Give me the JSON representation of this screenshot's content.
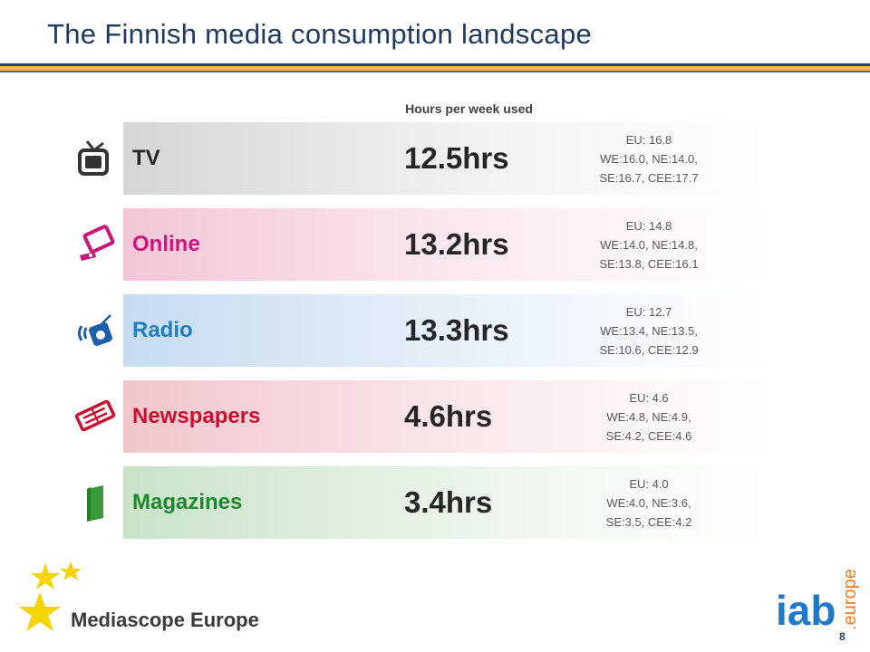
{
  "title": "The Finnish media consumption landscape",
  "subheader": "Hours per week used",
  "rows": [
    {
      "label": "TV",
      "value": "12.5hrs",
      "bench_1": "EU: 16.8",
      "bench_2": "WE:16.0, NE:14.0,",
      "bench_3": "SE:16.7, CEE:17.7",
      "color": "#262626",
      "icon": "tv-icon"
    },
    {
      "label": "Online",
      "value": "13.2hrs",
      "bench_1": "EU: 14.8",
      "bench_2": "WE:14.0, NE:14.8,",
      "bench_3": "SE:13.8, CEE:16.1",
      "color": "#c8177a",
      "icon": "laptop-icon"
    },
    {
      "label": "Radio",
      "value": "13.3hrs",
      "bench_1": "EU: 12.7",
      "bench_2": "WE:13.4, NE:13.5,",
      "bench_3": "SE:10.6, CEE:12.9",
      "color": "#1f7dc1",
      "icon": "radio-icon"
    },
    {
      "label": "Newspapers",
      "value": "4.6hrs",
      "bench_1": "EU: 4.6",
      "bench_2": "WE:4.8, NE:4.9,",
      "bench_3": "SE:4.2, CEE:4.6",
      "color": "#c8102e",
      "icon": "newspaper-icon"
    },
    {
      "label": "Magazines",
      "value": "3.4hrs",
      "bench_1": "EU: 4.0",
      "bench_2": "WE:4.0, NE:3.6,",
      "bench_3": "SE:3.5, CEE:4.2",
      "color": "#1e8a2e",
      "icon": "magazine-icon"
    }
  ],
  "footer": {
    "brand": "Mediascope Europe",
    "logo_text": "iab",
    "logo_suffix": ".europe",
    "page_number": "8"
  }
}
